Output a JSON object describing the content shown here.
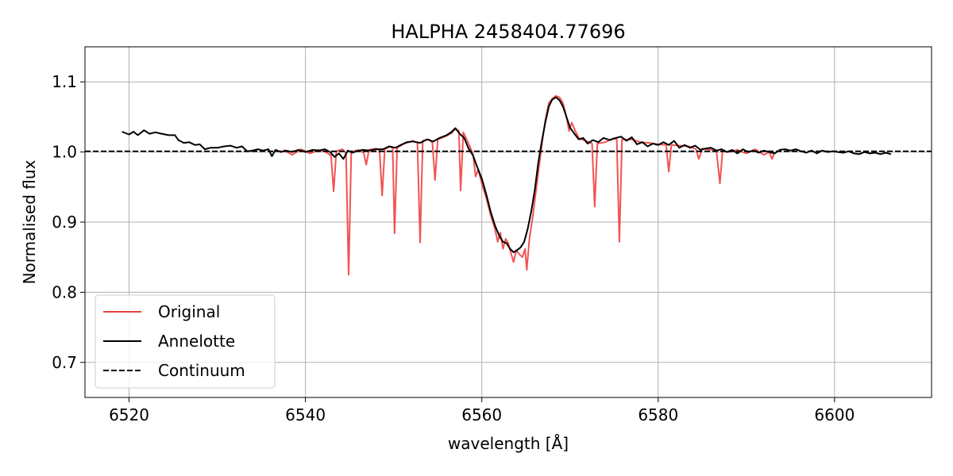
{
  "chart_data": {
    "type": "line",
    "title": "HALPHA 2458404.77696",
    "xlabel": "wavelength [Å]",
    "ylabel": "Normalised flux",
    "xlim": [
      6515,
      6611
    ],
    "ylim": [
      0.65,
      1.15
    ],
    "xticks": [
      6520,
      6540,
      6560,
      6580,
      6600
    ],
    "xtick_labels": [
      "6520",
      "6540",
      "6560",
      "6580",
      "6600"
    ],
    "yticks": [
      0.7,
      0.8,
      0.9,
      1.0,
      1.1
    ],
    "ytick_labels": [
      "0.7",
      "0.8",
      "0.9",
      "1.0",
      "1.1"
    ],
    "grid": true,
    "legend_position": "lower-left",
    "series": [
      {
        "name": "Original",
        "color": "#f04040",
        "style": "solid",
        "points": [
          [
            6537.5,
            1.003
          ],
          [
            6538.5,
            0.996
          ],
          [
            6539.5,
            1.004
          ],
          [
            6540.5,
            0.998
          ],
          [
            6541.5,
            1.003
          ],
          [
            6542.3,
            1.0
          ],
          [
            6542.9,
            0.995
          ],
          [
            6543.2,
            0.944
          ],
          [
            6543.5,
            1.001
          ],
          [
            6544.2,
            1.004
          ],
          [
            6544.6,
            0.998
          ],
          [
            6544.9,
            0.825
          ],
          [
            6545.2,
            1.0
          ],
          [
            6546.0,
            1.003
          ],
          [
            6546.6,
            0.999
          ],
          [
            6546.9,
            0.982
          ],
          [
            6547.2,
            1.003
          ],
          [
            6548.0,
            1.005
          ],
          [
            6548.4,
            1.002
          ],
          [
            6548.7,
            0.938
          ],
          [
            6549.0,
            1.004
          ],
          [
            6549.6,
            1.008
          ],
          [
            6549.9,
            1.005
          ],
          [
            6550.1,
            0.884
          ],
          [
            6550.4,
            1.006
          ],
          [
            6551.2,
            1.012
          ],
          [
            6552.2,
            1.016
          ],
          [
            6552.7,
            1.013
          ],
          [
            6553.0,
            0.871
          ],
          [
            6553.3,
            1.016
          ],
          [
            6554.0,
            1.018
          ],
          [
            6554.4,
            1.013
          ],
          [
            6554.7,
            0.96
          ],
          [
            6555.0,
            1.018
          ],
          [
            6555.8,
            1.022
          ],
          [
            6556.6,
            1.027
          ],
          [
            6557.0,
            1.033
          ],
          [
            6557.4,
            1.03
          ],
          [
            6557.6,
            0.945
          ],
          [
            6557.9,
            1.028
          ],
          [
            6558.5,
            1.012
          ],
          [
            6559.0,
            0.997
          ],
          [
            6559.3,
            0.965
          ],
          [
            6559.6,
            0.975
          ],
          [
            6560.0,
            0.955
          ],
          [
            6560.5,
            0.935
          ],
          [
            6561.0,
            0.91
          ],
          [
            6561.5,
            0.89
          ],
          [
            6561.8,
            0.872
          ],
          [
            6562.1,
            0.885
          ],
          [
            6562.4,
            0.862
          ],
          [
            6562.7,
            0.876
          ],
          [
            6563.0,
            0.87
          ],
          [
            6563.3,
            0.856
          ],
          [
            6563.6,
            0.843
          ],
          [
            6563.9,
            0.86
          ],
          [
            6564.2,
            0.855
          ],
          [
            6564.6,
            0.85
          ],
          [
            6564.9,
            0.862
          ],
          [
            6565.1,
            0.832
          ],
          [
            6565.4,
            0.876
          ],
          [
            6565.8,
            0.91
          ],
          [
            6566.3,
            0.96
          ],
          [
            6566.8,
            1.01
          ],
          [
            6567.2,
            1.045
          ],
          [
            6567.6,
            1.07
          ],
          [
            6568.0,
            1.076
          ],
          [
            6568.4,
            1.08
          ],
          [
            6568.8,
            1.078
          ],
          [
            6569.2,
            1.07
          ],
          [
            6569.6,
            1.05
          ],
          [
            6569.9,
            1.03
          ],
          [
            6570.2,
            1.042
          ],
          [
            6570.6,
            1.03
          ],
          [
            6571.0,
            1.02
          ],
          [
            6571.5,
            1.017
          ],
          [
            6572.0,
            1.015
          ],
          [
            6572.5,
            1.012
          ],
          [
            6572.8,
            0.922
          ],
          [
            6573.1,
            1.012
          ],
          [
            6574.0,
            1.014
          ],
          [
            6575.0,
            1.02
          ],
          [
            6575.3,
            1.018
          ],
          [
            6575.6,
            0.872
          ],
          [
            6575.9,
            1.018
          ],
          [
            6577.0,
            1.018
          ],
          [
            6578.0,
            1.014
          ],
          [
            6579.0,
            1.013
          ],
          [
            6580.0,
            1.011
          ],
          [
            6580.9,
            1.01
          ],
          [
            6581.2,
            0.972
          ],
          [
            6581.5,
            1.01
          ],
          [
            6582.5,
            1.009
          ],
          [
            6583.5,
            1.008
          ],
          [
            6584.3,
            1.004
          ],
          [
            6584.6,
            0.99
          ],
          [
            6585.0,
            1.005
          ],
          [
            6586.0,
            1.003
          ],
          [
            6586.6,
            1.002
          ],
          [
            6587.0,
            0.955
          ],
          [
            6587.3,
            1.001
          ],
          [
            6588.0,
            1.0
          ],
          [
            6589.0,
            1.003
          ],
          [
            6590.0,
            0.998
          ],
          [
            6591.0,
            1.004
          ],
          [
            6592.0,
            0.996
          ],
          [
            6592.6,
            1.0
          ],
          [
            6592.9,
            0.99
          ],
          [
            6593.2,
            0.999
          ]
        ]
      },
      {
        "name": "Annelotte",
        "color": "#000000",
        "style": "solid",
        "points": [
          [
            6519.2,
            1.029
          ],
          [
            6520.0,
            1.025
          ],
          [
            6520.5,
            1.029
          ],
          [
            6521.0,
            1.024
          ],
          [
            6521.7,
            1.031
          ],
          [
            6522.3,
            1.026
          ],
          [
            6523.0,
            1.028
          ],
          [
            6523.7,
            1.026
          ],
          [
            6524.5,
            1.024
          ],
          [
            6525.2,
            1.024
          ],
          [
            6525.6,
            1.017
          ],
          [
            6526.2,
            1.013
          ],
          [
            6526.8,
            1.014
          ],
          [
            6527.5,
            1.01
          ],
          [
            6528.0,
            1.011
          ],
          [
            6528.6,
            1.004
          ],
          [
            6529.2,
            1.006
          ],
          [
            6530.0,
            1.006
          ],
          [
            6530.8,
            1.008
          ],
          [
            6531.5,
            1.009
          ],
          [
            6532.2,
            1.006
          ],
          [
            6532.8,
            1.008
          ],
          [
            6533.4,
            1.001
          ],
          [
            6534.0,
            1.002
          ],
          [
            6534.6,
            1.004
          ],
          [
            6535.2,
            1.002
          ],
          [
            6535.8,
            1.004
          ],
          [
            6536.2,
            0.994
          ],
          [
            6536.6,
            1.003
          ],
          [
            6537.2,
            1.0
          ],
          [
            6537.8,
            1.002
          ],
          [
            6538.5,
            1.0
          ],
          [
            6539.2,
            1.003
          ],
          [
            6540.0,
            1.0
          ],
          [
            6540.8,
            1.003
          ],
          [
            6541.5,
            1.002
          ],
          [
            6542.2,
            1.004
          ],
          [
            6542.8,
            1.0
          ],
          [
            6543.3,
            0.993
          ],
          [
            6543.8,
            0.998
          ],
          [
            6544.3,
            0.99
          ],
          [
            6544.8,
            1.002
          ],
          [
            6545.3,
            0.999
          ],
          [
            6545.8,
            1.001
          ],
          [
            6546.5,
            1.003
          ],
          [
            6547.2,
            1.002
          ],
          [
            6548.0,
            1.004
          ],
          [
            6548.8,
            1.004
          ],
          [
            6549.5,
            1.008
          ],
          [
            6550.2,
            1.006
          ],
          [
            6550.8,
            1.01
          ],
          [
            6551.5,
            1.014
          ],
          [
            6552.2,
            1.015
          ],
          [
            6553.0,
            1.013
          ],
          [
            6553.8,
            1.018
          ],
          [
            6554.5,
            1.015
          ],
          [
            6555.2,
            1.02
          ],
          [
            6556.0,
            1.024
          ],
          [
            6556.6,
            1.029
          ],
          [
            6557.0,
            1.034
          ],
          [
            6557.5,
            1.026
          ],
          [
            6558.0,
            1.02
          ],
          [
            6558.5,
            1.005
          ],
          [
            6559.0,
            0.995
          ],
          [
            6559.5,
            0.978
          ],
          [
            6560.0,
            0.962
          ],
          [
            6560.5,
            0.94
          ],
          [
            6561.0,
            0.915
          ],
          [
            6561.5,
            0.895
          ],
          [
            6562.0,
            0.88
          ],
          [
            6562.4,
            0.872
          ],
          [
            6562.8,
            0.87
          ],
          [
            6563.2,
            0.862
          ],
          [
            6563.6,
            0.857
          ],
          [
            6564.0,
            0.86
          ],
          [
            6564.4,
            0.864
          ],
          [
            6564.8,
            0.872
          ],
          [
            6565.2,
            0.89
          ],
          [
            6565.6,
            0.915
          ],
          [
            6566.0,
            0.945
          ],
          [
            6566.4,
            0.985
          ],
          [
            6566.8,
            1.015
          ],
          [
            6567.2,
            1.042
          ],
          [
            6567.6,
            1.065
          ],
          [
            6568.0,
            1.075
          ],
          [
            6568.4,
            1.078
          ],
          [
            6568.8,
            1.074
          ],
          [
            6569.2,
            1.065
          ],
          [
            6569.6,
            1.05
          ],
          [
            6570.0,
            1.035
          ],
          [
            6570.5,
            1.026
          ],
          [
            6571.0,
            1.018
          ],
          [
            6571.5,
            1.02
          ],
          [
            6572.0,
            1.012
          ],
          [
            6572.6,
            1.017
          ],
          [
            6573.2,
            1.014
          ],
          [
            6573.8,
            1.02
          ],
          [
            6574.5,
            1.017
          ],
          [
            6575.2,
            1.02
          ],
          [
            6575.8,
            1.022
          ],
          [
            6576.4,
            1.016
          ],
          [
            6577.0,
            1.021
          ],
          [
            6577.6,
            1.011
          ],
          [
            6578.2,
            1.014
          ],
          [
            6578.8,
            1.008
          ],
          [
            6579.4,
            1.012
          ],
          [
            6580.0,
            1.01
          ],
          [
            6580.6,
            1.014
          ],
          [
            6581.2,
            1.01
          ],
          [
            6581.8,
            1.016
          ],
          [
            6582.4,
            1.006
          ],
          [
            6583.0,
            1.01
          ],
          [
            6583.6,
            1.006
          ],
          [
            6584.2,
            1.009
          ],
          [
            6584.8,
            1.003
          ],
          [
            6585.4,
            1.005
          ],
          [
            6586.0,
            1.006
          ],
          [
            6586.6,
            1.002
          ],
          [
            6587.2,
            1.004
          ],
          [
            6587.8,
            1.0
          ],
          [
            6588.4,
            1.003
          ],
          [
            6589.0,
            0.998
          ],
          [
            6589.6,
            1.004
          ],
          [
            6590.2,
            1.0
          ],
          [
            6590.8,
            1.002
          ],
          [
            6591.4,
            0.999
          ],
          [
            6592.0,
            1.002
          ],
          [
            6592.6,
            1.0
          ],
          [
            6593.2,
            0.998
          ],
          [
            6593.8,
            1.003
          ],
          [
            6594.4,
            1.004
          ],
          [
            6595.0,
            1.002
          ],
          [
            6595.6,
            1.004
          ],
          [
            6596.2,
            1.001
          ],
          [
            6596.8,
            0.999
          ],
          [
            6597.4,
            1.002
          ],
          [
            6598.0,
            0.998
          ],
          [
            6598.6,
            1.002
          ],
          [
            6599.2,
            1.0
          ],
          [
            6599.8,
            1.001
          ],
          [
            6600.4,
            1.0
          ],
          [
            6601.0,
            0.999
          ],
          [
            6601.6,
            1.001
          ],
          [
            6602.2,
            0.998
          ],
          [
            6602.8,
            0.997
          ],
          [
            6603.4,
            1.0
          ],
          [
            6604.0,
            0.998
          ],
          [
            6604.6,
            0.999
          ],
          [
            6605.2,
            0.997
          ],
          [
            6605.8,
            0.999
          ],
          [
            6606.4,
            0.997
          ]
        ]
      },
      {
        "name": "Continuum",
        "color": "#000000",
        "style": "dashed",
        "points": [
          [
            6515,
            1.001
          ],
          [
            6611,
            1.001
          ]
        ]
      }
    ]
  }
}
